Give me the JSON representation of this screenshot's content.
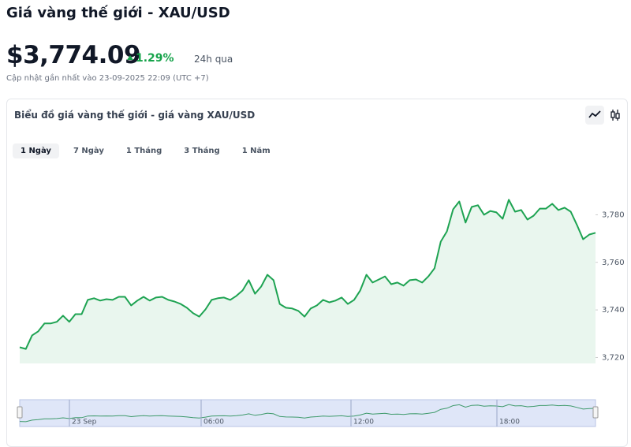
{
  "header": {
    "title": "Giá vàng thế giới - XAU/USD",
    "price": "$3,774.09",
    "change": "1.29%",
    "period": "24h qua",
    "updated": "Cập nhật gần nhất vào 23-09-2025 22:09 (UTC +7)"
  },
  "card": {
    "title": "Biểu đồ giá vàng thế giới - giá vàng XAU/USD",
    "tabs": [
      "1 Ngày",
      "7 Ngày",
      "1 Tháng",
      "3 Tháng",
      "1 Năm"
    ],
    "active_tab": 0
  },
  "chart_data": {
    "type": "area",
    "color": "#1ea352",
    "fill": "#e9f6ee",
    "values": [
      3724.3,
      3723.6,
      3729.3,
      3731,
      3734.3,
      3734.3,
      3735,
      3737.6,
      3735,
      3738.2,
      3738.2,
      3744.2,
      3744.9,
      3743.9,
      3744.5,
      3744.2,
      3745.5,
      3745.5,
      3741.9,
      3743.9,
      3745.5,
      3743.9,
      3745.2,
      3745.5,
      3744.2,
      3743.5,
      3742.5,
      3740.9,
      3738.6,
      3737.2,
      3740.2,
      3744.2,
      3744.9,
      3745.2,
      3744.2,
      3745.9,
      3748.2,
      3752.5,
      3746.8,
      3749.8,
      3754.8,
      3752.5,
      3742.5,
      3740.9,
      3740.6,
      3739.6,
      3737.2,
      3740.6,
      3741.9,
      3744.2,
      3743.2,
      3743.9,
      3745.2,
      3742.5,
      3744.2,
      3748.2,
      3754.8,
      3751.5,
      3752.8,
      3754.1,
      3750.8,
      3751.5,
      3750.2,
      3752.5,
      3752.8,
      3751.5,
      3754.1,
      3757.5,
      3768.7,
      3773,
      3782.3,
      3785.6,
      3776.7,
      3783.3,
      3784,
      3780,
      3781.6,
      3781,
      3778.3,
      3786.3,
      3781.3,
      3782,
      3778,
      3779.6,
      3782.6,
      3782.6,
      3784.6,
      3782,
      3783,
      3781.3,
      3775.7,
      3769.7,
      3771.7,
      3772.4
    ],
    "ylim": [
      3717.5,
      3804
    ],
    "yticks": [
      {
        "value": 3720,
        "label": "3,720"
      },
      {
        "value": 3740,
        "label": "3,740"
      },
      {
        "value": 3760,
        "label": "3,760"
      },
      {
        "value": 3780,
        "label": "3,780"
      }
    ],
    "navigator_labels": [
      "23 Sep",
      "06:00",
      "12:00",
      "18:00"
    ]
  }
}
